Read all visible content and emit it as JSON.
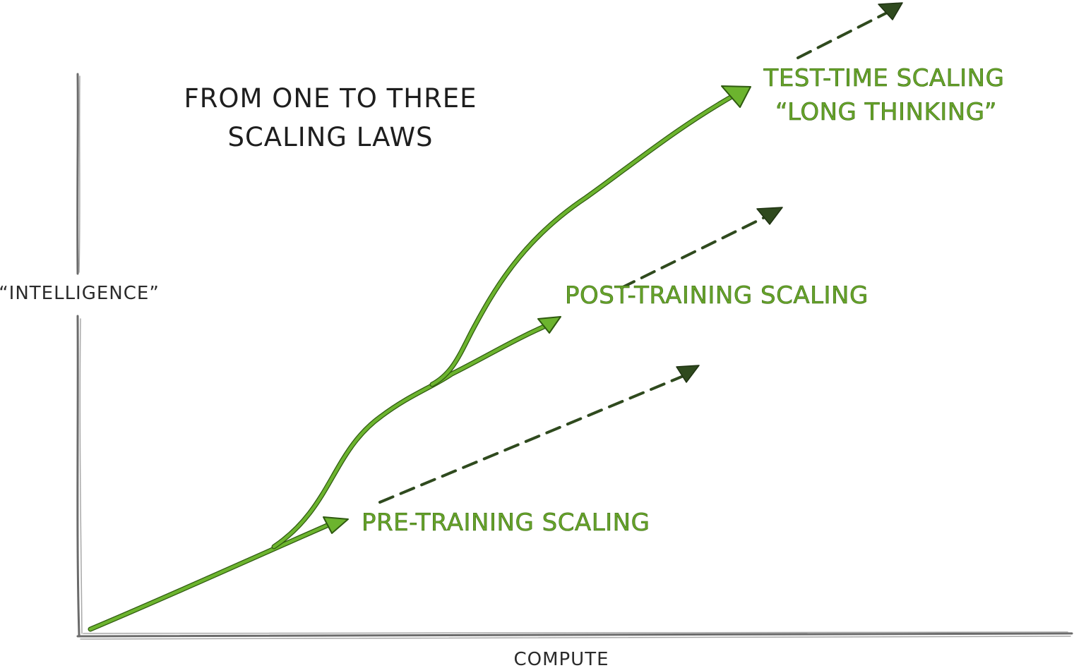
{
  "title": {
    "line1": "FROM ONE TO THREE",
    "line2": "SCALING LAWS"
  },
  "axes": {
    "y_label": "“INTELLIGENCE”",
    "x_label": "COMPUTE"
  },
  "curves": {
    "pre_training": {
      "label": "PRE-TRAINING SCALING"
    },
    "post_training": {
      "label": "POST-TRAINING SCALING"
    },
    "test_time": {
      "label_line1": "TEST-TIME SCALING",
      "label_line2": "“LONG THINKING”"
    }
  },
  "colors": {
    "curve_green": "#6cb42e",
    "label_green": "#66a32a",
    "dashed_dark_green": "#2f4a1e",
    "axis_gray": "#6b6b6b",
    "title_black": "#1e1e1e"
  }
}
